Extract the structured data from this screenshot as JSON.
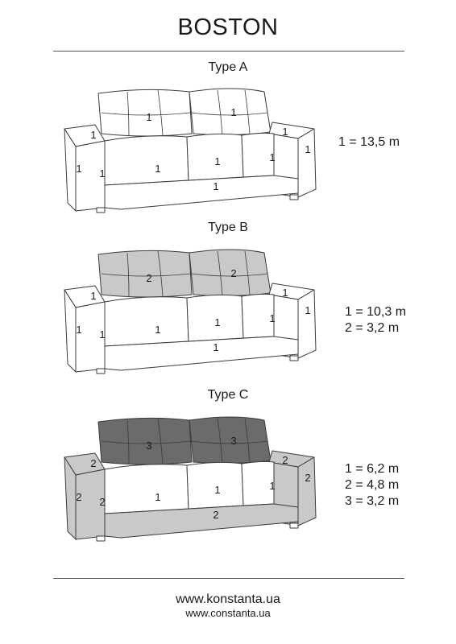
{
  "title": "BOSTON",
  "variants": [
    {
      "label": "Type A",
      "legend": [
        "1 = 13,5 m"
      ],
      "parts": {
        "cushion": "1",
        "back": "1",
        "arm": "1",
        "base": "1",
        "armtop": "1"
      },
      "colors": {
        "cushion": "#ffffff",
        "back": "#ffffff",
        "arm": "#ffffff",
        "base": "#ffffff"
      }
    },
    {
      "label": "Type B",
      "legend": [
        "1 = 10,3 m",
        "2 = 3,2 m"
      ],
      "parts": {
        "cushion": "1",
        "back": "2",
        "arm": "1",
        "base": "1",
        "armtop": "1"
      },
      "colors": {
        "cushion": "#ffffff",
        "back": "#c9c9c9",
        "arm": "#ffffff",
        "base": "#ffffff"
      }
    },
    {
      "label": "Type C",
      "legend": [
        "1 = 6,2 m",
        "2 = 4,8 m",
        "3 = 3,2 m"
      ],
      "parts": {
        "cushion": "1",
        "back": "3",
        "arm": "2",
        "base": "2",
        "armtop": "2"
      },
      "colors": {
        "cushion": "#ffffff",
        "back": "#6b6b6b",
        "arm": "#c9c9c9",
        "base": "#c9c9c9"
      }
    }
  ],
  "footer": {
    "url_large": "www.konstanta.ua",
    "url_small": "www.constanta.ua"
  }
}
